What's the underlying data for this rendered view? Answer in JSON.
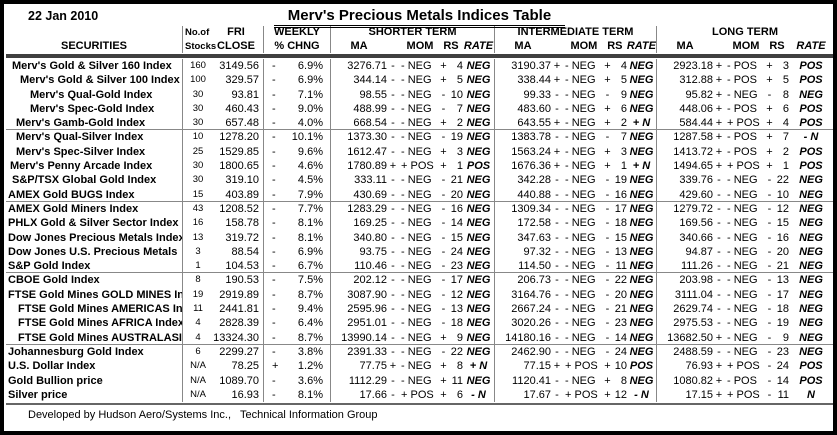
{
  "date": "22 Jan 2010",
  "title": "Merv's Precious Metals Indices Table",
  "footer": "Developed by Hudson Aero/Systems Inc.,   Technical Information Group",
  "columns": {
    "securities": "SECURITIES",
    "stocks_l1": "No.of",
    "stocks_l2": "Stocks",
    "close_l1": "FRI",
    "close_l2": "CLOSE",
    "chng_l1": "WEEKLY",
    "chng_l2": "% CHNG",
    "ma": "MA",
    "mom": "MOM",
    "rs": "RS",
    "rate": "RATE",
    "terms": [
      "SHORTER TERM",
      "INTERMEDIATE TERM",
      "LONG TERM"
    ]
  },
  "dividers_after": [
    4,
    9,
    14,
    19
  ],
  "rows": [
    {
      "name": "Merv's Gold & Silver 160 Index",
      "indent": 6,
      "stocks": "160",
      "close": "3149.56",
      "cs": "-",
      "chng": "6.9%",
      "st": {
        "ma": "3276.71",
        "mas": "-",
        "mom": "- NEG",
        "rss": "+",
        "rs": "4",
        "rate": "NEG"
      },
      "it": {
        "ma": "3190.37",
        "mas": "+",
        "mom": "- NEG",
        "rss": "+",
        "rs": "4",
        "rate": "NEG"
      },
      "lt": {
        "ma": "2923.18",
        "mas": "+",
        "mom": "- POS",
        "rss": "+",
        "rs": "3",
        "rate": "POS"
      }
    },
    {
      "name": "Merv's Gold & Silver 100 Index",
      "indent": 14,
      "stocks": "100",
      "close": "329.57",
      "cs": "-",
      "chng": "6.9%",
      "st": {
        "ma": "344.14",
        "mas": "-",
        "mom": "- NEG",
        "rss": "+",
        "rs": "5",
        "rate": "NEG"
      },
      "it": {
        "ma": "338.44",
        "mas": "+",
        "mom": "- NEG",
        "rss": "+",
        "rs": "5",
        "rate": "NEG"
      },
      "lt": {
        "ma": "312.88",
        "mas": "+",
        "mom": "- POS",
        "rss": "+",
        "rs": "5",
        "rate": "POS"
      }
    },
    {
      "name": "Merv's Qual-Gold Index",
      "indent": 24,
      "stocks": "30",
      "close": "93.81",
      "cs": "-",
      "chng": "7.1%",
      "st": {
        "ma": "98.55",
        "mas": "-",
        "mom": "- NEG",
        "rss": "-",
        "rs": "10",
        "rate": "NEG"
      },
      "it": {
        "ma": "99.33",
        "mas": "-",
        "mom": "- NEG",
        "rss": "-",
        "rs": "9",
        "rate": "NEG"
      },
      "lt": {
        "ma": "95.82",
        "mas": "+",
        "mom": "- NEG",
        "rss": "-",
        "rs": "8",
        "rate": "NEG"
      }
    },
    {
      "name": "Merv's Spec-Gold Index",
      "indent": 24,
      "stocks": "30",
      "close": "460.43",
      "cs": "-",
      "chng": "9.0%",
      "st": {
        "ma": "488.99",
        "mas": "-",
        "mom": "- NEG",
        "rss": "-",
        "rs": "7",
        "rate": "NEG"
      },
      "it": {
        "ma": "483.60",
        "mas": "-",
        "mom": "- NEG",
        "rss": "+",
        "rs": "6",
        "rate": "NEG"
      },
      "lt": {
        "ma": "448.06",
        "mas": "+",
        "mom": "- POS",
        "rss": "+",
        "rs": "6",
        "rate": "POS"
      }
    },
    {
      "name": "Merv's Gamb-Gold Index",
      "indent": 10,
      "stocks": "30",
      "close": "657.48",
      "cs": "-",
      "chng": "4.0%",
      "st": {
        "ma": "668.54",
        "mas": "-",
        "mom": "- NEG",
        "rss": "+",
        "rs": "2",
        "rate": "NEG"
      },
      "it": {
        "ma": "643.55",
        "mas": "+",
        "mom": "- NEG",
        "rss": "+",
        "rs": "2",
        "rate": "+ N"
      },
      "lt": {
        "ma": "584.44",
        "mas": "+",
        "mom": "+ POS",
        "rss": "+",
        "rs": "4",
        "rate": "POS"
      }
    },
    {
      "name": "Merv's Qual-Silver Index",
      "indent": 10,
      "stocks": "10",
      "close": "1278.20",
      "cs": "-",
      "chng": "10.1%",
      "st": {
        "ma": "1373.30",
        "mas": "-",
        "mom": "- NEG",
        "rss": "-",
        "rs": "19",
        "rate": "NEG"
      },
      "it": {
        "ma": "1383.78",
        "mas": "-",
        "mom": "- NEG",
        "rss": "-",
        "rs": "7",
        "rate": "NEG"
      },
      "lt": {
        "ma": "1287.58",
        "mas": "+",
        "mom": "- POS",
        "rss": "+",
        "rs": "7",
        "rate": "- N"
      }
    },
    {
      "name": "Merv's Spec-Silver Index",
      "indent": 10,
      "stocks": "25",
      "close": "1529.85",
      "cs": "-",
      "chng": "9.6%",
      "st": {
        "ma": "1612.47",
        "mas": "-",
        "mom": "- NEG",
        "rss": "+",
        "rs": "3",
        "rate": "NEG"
      },
      "it": {
        "ma": "1563.24",
        "mas": "+",
        "mom": "- NEG",
        "rss": "+",
        "rs": "3",
        "rate": "NEG"
      },
      "lt": {
        "ma": "1413.72",
        "mas": "+",
        "mom": "- POS",
        "rss": "+",
        "rs": "2",
        "rate": "POS"
      }
    },
    {
      "name": "Merv's Penny Arcade Index",
      "indent": 4,
      "stocks": "30",
      "close": "1800.65",
      "cs": "-",
      "chng": "4.6%",
      "st": {
        "ma": "1780.89",
        "mas": "+",
        "mom": "+ POS",
        "rss": "+",
        "rs": "1",
        "rate": "POS"
      },
      "it": {
        "ma": "1676.36",
        "mas": "+",
        "mom": "- NEG",
        "rss": "+",
        "rs": "1",
        "rate": "+ N"
      },
      "lt": {
        "ma": "1494.65",
        "mas": "+",
        "mom": "+ POS",
        "rss": "+",
        "rs": "1",
        "rate": "POS"
      }
    },
    {
      "name": "S&P/TSX Global Gold Index",
      "indent": 6,
      "stocks": "30",
      "close": "319.10",
      "cs": "-",
      "chng": "4.5%",
      "st": {
        "ma": "333.11",
        "mas": "-",
        "mom": "- NEG",
        "rss": "-",
        "rs": "21",
        "rate": "NEG"
      },
      "it": {
        "ma": "342.28",
        "mas": "-",
        "mom": "- NEG",
        "rss": "-",
        "rs": "19",
        "rate": "NEG"
      },
      "lt": {
        "ma": "339.76",
        "mas": "-",
        "mom": "- NEG",
        "rss": "-",
        "rs": "22",
        "rate": "NEG"
      }
    },
    {
      "name": "AMEX Gold BUGS Index",
      "indent": 2,
      "stocks": "15",
      "close": "403.89",
      "cs": "-",
      "chng": "7.9%",
      "st": {
        "ma": "430.69",
        "mas": "-",
        "mom": "- NEG",
        "rss": "-",
        "rs": "20",
        "rate": "NEG"
      },
      "it": {
        "ma": "440.88",
        "mas": "-",
        "mom": "- NEG",
        "rss": "-",
        "rs": "16",
        "rate": "NEG"
      },
      "lt": {
        "ma": "429.60",
        "mas": "-",
        "mom": "- NEG",
        "rss": "-",
        "rs": "10",
        "rate": "NEG"
      }
    },
    {
      "name": "AMEX Gold Miners Index",
      "indent": 2,
      "stocks": "43",
      "close": "1208.52",
      "cs": "-",
      "chng": "7.7%",
      "st": {
        "ma": "1283.29",
        "mas": "-",
        "mom": "- NEG",
        "rss": "-",
        "rs": "16",
        "rate": "NEG"
      },
      "it": {
        "ma": "1309.34",
        "mas": "-",
        "mom": "- NEG",
        "rss": "-",
        "rs": "17",
        "rate": "NEG"
      },
      "lt": {
        "ma": "1279.72",
        "mas": "-",
        "mom": "- NEG",
        "rss": "-",
        "rs": "12",
        "rate": "NEG"
      }
    },
    {
      "name": "PHLX Gold & Silver Sector Index",
      "indent": 2,
      "stocks": "16",
      "close": "158.78",
      "cs": "-",
      "chng": "8.1%",
      "st": {
        "ma": "169.25",
        "mas": "-",
        "mom": "- NEG",
        "rss": "-",
        "rs": "14",
        "rate": "NEG"
      },
      "it": {
        "ma": "172.58",
        "mas": "-",
        "mom": "- NEG",
        "rss": "-",
        "rs": "18",
        "rate": "NEG"
      },
      "lt": {
        "ma": "169.56",
        "mas": "-",
        "mom": "- NEG",
        "rss": "-",
        "rs": "15",
        "rate": "NEG"
      }
    },
    {
      "name": "Dow Jones Precious Metals Index",
      "indent": 2,
      "stocks": "13",
      "close": "319.72",
      "cs": "-",
      "chng": "8.1%",
      "st": {
        "ma": "340.80",
        "mas": "-",
        "mom": "- NEG",
        "rss": "-",
        "rs": "15",
        "rate": "NEG"
      },
      "it": {
        "ma": "347.63",
        "mas": "-",
        "mom": "- NEG",
        "rss": "-",
        "rs": "15",
        "rate": "NEG"
      },
      "lt": {
        "ma": "340.66",
        "mas": "-",
        "mom": "- NEG",
        "rss": "-",
        "rs": "16",
        "rate": "NEG"
      }
    },
    {
      "name": "Dow Jones U.S. Precious Metals",
      "indent": 2,
      "stocks": "3",
      "close": "88.54",
      "cs": "-",
      "chng": "6.9%",
      "st": {
        "ma": "93.75",
        "mas": "-",
        "mom": "- NEG",
        "rss": "-",
        "rs": "24",
        "rate": "NEG"
      },
      "it": {
        "ma": "97.32",
        "mas": "-",
        "mom": "- NEG",
        "rss": "-",
        "rs": "13",
        "rate": "NEG"
      },
      "lt": {
        "ma": "94.87",
        "mas": "-",
        "mom": "- NEG",
        "rss": "-",
        "rs": "20",
        "rate": "NEG"
      }
    },
    {
      "name": "S&P Gold Index",
      "indent": 2,
      "stocks": "1",
      "close": "104.53",
      "cs": "-",
      "chng": "6.7%",
      "st": {
        "ma": "110.46",
        "mas": "-",
        "mom": "- NEG",
        "rss": "-",
        "rs": "23",
        "rate": "NEG"
      },
      "it": {
        "ma": "114.50",
        "mas": "-",
        "mom": "- NEG",
        "rss": "-",
        "rs": "11",
        "rate": "NEG"
      },
      "lt": {
        "ma": "111.26",
        "mas": "-",
        "mom": "- NEG",
        "rss": "-",
        "rs": "21",
        "rate": "NEG"
      }
    },
    {
      "name": "CBOE Gold Index",
      "indent": 2,
      "stocks": "8",
      "close": "190.53",
      "cs": "-",
      "chng": "7.5%",
      "st": {
        "ma": "202.12",
        "mas": "-",
        "mom": "- NEG",
        "rss": "-",
        "rs": "17",
        "rate": "NEG"
      },
      "it": {
        "ma": "206.73",
        "mas": "-",
        "mom": "- NEG",
        "rss": "-",
        "rs": "22",
        "rate": "NEG"
      },
      "lt": {
        "ma": "203.98",
        "mas": "-",
        "mom": "- NEG",
        "rss": "-",
        "rs": "13",
        "rate": "NEG"
      }
    },
    {
      "name": "FTSE Gold Mines GOLD MINES Index",
      "indent": 2,
      "stocks": "19",
      "close": "2919.89",
      "cs": "-",
      "chng": "8.7%",
      "st": {
        "ma": "3087.90",
        "mas": "-",
        "mom": "- NEG",
        "rss": "-",
        "rs": "12",
        "rate": "NEG"
      },
      "it": {
        "ma": "3164.76",
        "mas": "-",
        "mom": "- NEG",
        "rss": "-",
        "rs": "20",
        "rate": "NEG"
      },
      "lt": {
        "ma": "3111.04",
        "mas": "-",
        "mom": "- NEG",
        "rss": "-",
        "rs": "17",
        "rate": "NEG"
      }
    },
    {
      "name": "FTSE Gold Mines AMERICAS Index",
      "indent": 12,
      "stocks": "11",
      "close": "2441.81",
      "cs": "-",
      "chng": "9.4%",
      "st": {
        "ma": "2595.96",
        "mas": "-",
        "mom": "- NEG",
        "rss": "-",
        "rs": "13",
        "rate": "NEG"
      },
      "it": {
        "ma": "2667.24",
        "mas": "-",
        "mom": "- NEG",
        "rss": "-",
        "rs": "21",
        "rate": "NEG"
      },
      "lt": {
        "ma": "2629.74",
        "mas": "-",
        "mom": "- NEG",
        "rss": "-",
        "rs": "18",
        "rate": "NEG"
      }
    },
    {
      "name": "FTSE Gold Mines AFRICA Index",
      "indent": 12,
      "stocks": "4",
      "close": "2828.39",
      "cs": "-",
      "chng": "6.4%",
      "st": {
        "ma": "2951.01",
        "mas": "-",
        "mom": "- NEG",
        "rss": "-",
        "rs": "18",
        "rate": "NEG"
      },
      "it": {
        "ma": "3020.26",
        "mas": "-",
        "mom": "- NEG",
        "rss": "-",
        "rs": "23",
        "rate": "NEG"
      },
      "lt": {
        "ma": "2975.53",
        "mas": "-",
        "mom": "- NEG",
        "rss": "-",
        "rs": "19",
        "rate": "NEG"
      }
    },
    {
      "name": "FTSE Gold Mines AUSTRALASIA Index",
      "indent": 12,
      "stocks": "4",
      "close": "13324.30",
      "cs": "-",
      "chng": "8.7%",
      "st": {
        "ma": "13990.14",
        "mas": "-",
        "mom": "- NEG",
        "rss": "+",
        "rs": "9",
        "rate": "NEG"
      },
      "it": {
        "ma": "14180.16",
        "mas": "-",
        "mom": "- NEG",
        "rss": "-",
        "rs": "14",
        "rate": "NEG"
      },
      "lt": {
        "ma": "13682.50",
        "mas": "+",
        "mom": "- NEG",
        "rss": "-",
        "rs": "9",
        "rate": "NEG"
      }
    },
    {
      "name": "Johannesburg Gold Index",
      "indent": 2,
      "stocks": "6",
      "close": "2299.27",
      "cs": "-",
      "chng": "3.8%",
      "st": {
        "ma": "2391.33",
        "mas": "-",
        "mom": "- NEG",
        "rss": "-",
        "rs": "22",
        "rate": "NEG"
      },
      "it": {
        "ma": "2462.90",
        "mas": "-",
        "mom": "- NEG",
        "rss": "-",
        "rs": "24",
        "rate": "NEG"
      },
      "lt": {
        "ma": "2488.59",
        "mas": "-",
        "mom": "- NEG",
        "rss": "-",
        "rs": "23",
        "rate": "NEG"
      }
    },
    {
      "name": "U.S. Dollar Index",
      "indent": 2,
      "stocks": "N/A",
      "close": "78.25",
      "cs": "+",
      "chng": "1.2%",
      "st": {
        "ma": "77.75",
        "mas": "+",
        "mom": "- NEG",
        "rss": "+",
        "rs": "8",
        "rate": "+ N"
      },
      "it": {
        "ma": "77.15",
        "mas": "+",
        "mom": "+ POS",
        "rss": "+",
        "rs": "10",
        "rate": "POS"
      },
      "lt": {
        "ma": "76.93",
        "mas": "+",
        "mom": "+ POS",
        "rss": "-",
        "rs": "24",
        "rate": "POS"
      }
    },
    {
      "name": "Gold Bullion price",
      "indent": 2,
      "stocks": "N/A",
      "close": "1089.70",
      "cs": "-",
      "chng": "3.6%",
      "st": {
        "ma": "1112.29",
        "mas": "-",
        "mom": "- NEG",
        "rss": "+",
        "rs": "11",
        "rate": "NEG"
      },
      "it": {
        "ma": "1120.41",
        "mas": "-",
        "mom": "- NEG",
        "rss": "+",
        "rs": "8",
        "rate": "NEG"
      },
      "lt": {
        "ma": "1080.82",
        "mas": "+",
        "mom": "- POS",
        "rss": "-",
        "rs": "14",
        "rate": "POS"
      }
    },
    {
      "name": "Silver price",
      "indent": 2,
      "stocks": "N/A",
      "close": "16.93",
      "cs": "-",
      "chng": "8.1%",
      "st": {
        "ma": "17.66",
        "mas": "-",
        "mom": "+ POS",
        "rss": "+",
        "rs": "6",
        "rate": "- N"
      },
      "it": {
        "ma": "17.67",
        "mas": "-",
        "mom": "+ POS",
        "rss": "+",
        "rs": "12",
        "rate": "- N"
      },
      "lt": {
        "ma": "17.15",
        "mas": "+",
        "mom": "+ POS",
        "rss": "-",
        "rs": "11",
        "rate": "N"
      }
    }
  ]
}
